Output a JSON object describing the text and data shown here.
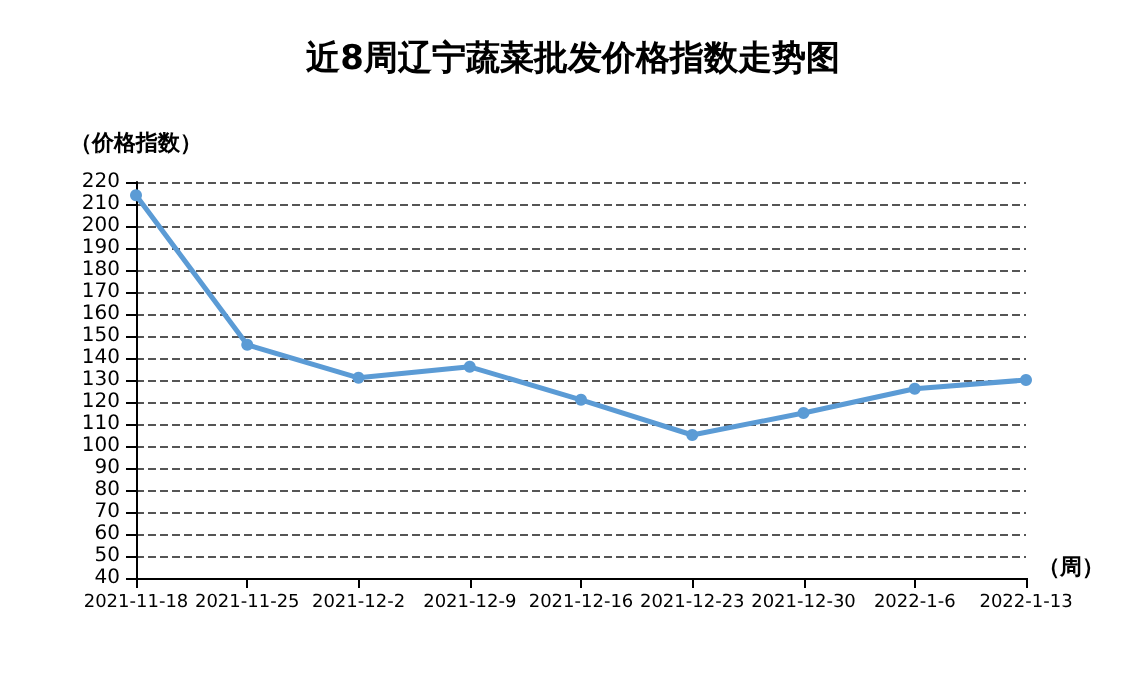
{
  "chart_data": {
    "type": "line",
    "title": "近8周辽宁蔬菜批发价格指数走势图",
    "ylabel": "（价格指数）",
    "xlabel": "（周）",
    "categories": [
      "2021-11-18",
      "2021-11-25",
      "2021-12-2",
      "2021-12-9",
      "2021-12-16",
      "2021-12-23",
      "2021-12-30",
      "2022-1-6",
      "2022-1-13"
    ],
    "series": [
      {
        "color": "#5b9bd5",
        "values": [
          214,
          146,
          131,
          136,
          121,
          105,
          115,
          126,
          130
        ]
      }
    ],
    "ylim": [
      40,
      220
    ],
    "yticks": [
      40,
      50,
      60,
      70,
      80,
      90,
      100,
      110,
      120,
      130,
      140,
      150,
      160,
      170,
      180,
      190,
      200,
      210,
      220
    ],
    "grid": "y",
    "marker": "circle",
    "line_style": "solid"
  }
}
